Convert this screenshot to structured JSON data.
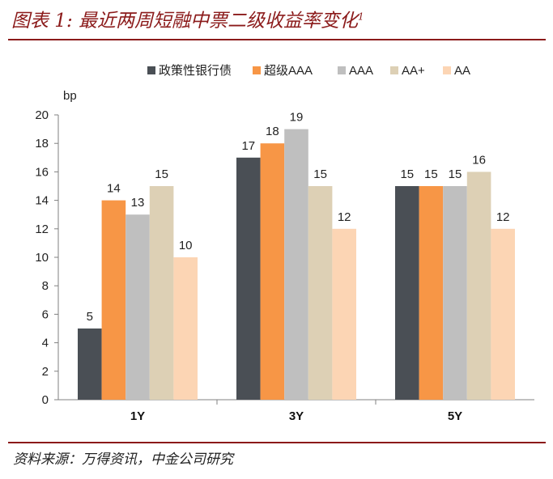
{
  "header": {
    "title": "图表 1: 最近两周短融中票二级收益率变化",
    "title_sup": "1"
  },
  "footer": {
    "source": "资料来源：万得资讯，中金公司研究"
  },
  "chart_data": {
    "type": "bar",
    "title": "",
    "ylabel": "bp",
    "xlabel": "",
    "ylim": [
      0,
      20
    ],
    "yticks": [
      0,
      2,
      4,
      6,
      8,
      10,
      12,
      14,
      16,
      18,
      20
    ],
    "grid": false,
    "legend_position": "top",
    "categories": [
      "1Y",
      "3Y",
      "5Y"
    ],
    "series": [
      {
        "name": "政策性银行债",
        "color": "#4a4f55",
        "values": [
          5,
          17,
          15
        ]
      },
      {
        "name": "超级AAA",
        "color": "#f79646",
        "values": [
          14,
          18,
          15
        ]
      },
      {
        "name": "AAA",
        "color": "#bfbfbf",
        "values": [
          13,
          19,
          15
        ]
      },
      {
        "name": "AA+",
        "color": "#ddd0b5",
        "values": [
          15,
          15,
          16
        ]
      },
      {
        "name": "AA",
        "color": "#fcd5b4",
        "values": [
          10,
          12,
          12
        ]
      }
    ]
  }
}
